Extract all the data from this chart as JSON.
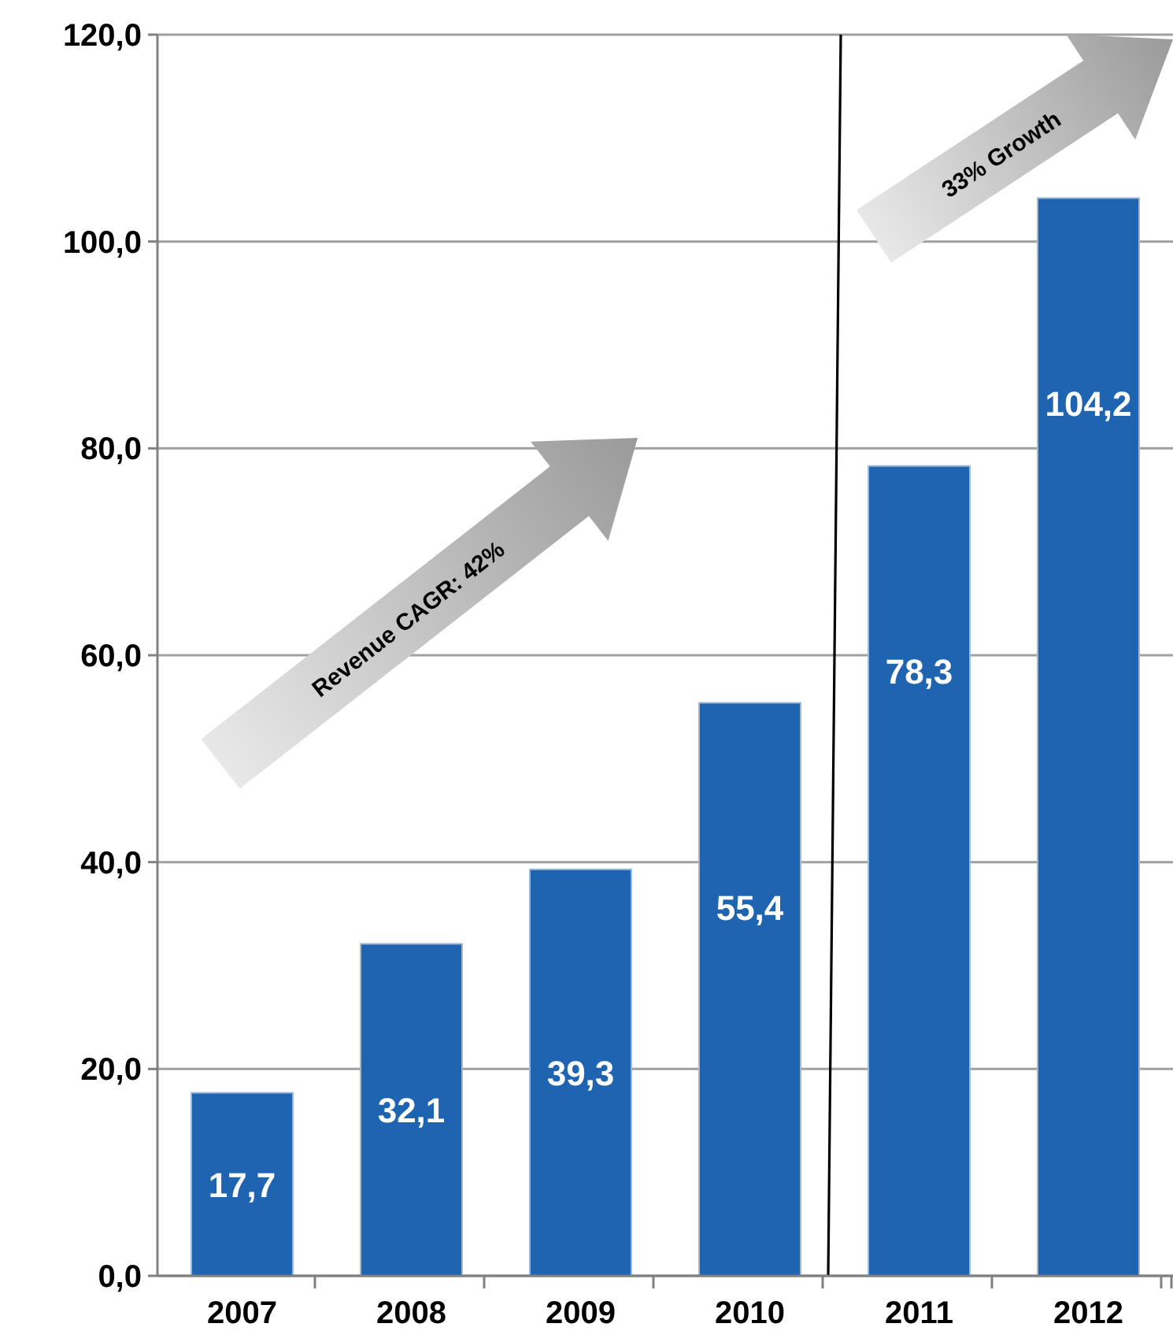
{
  "chart_data": {
    "type": "bar",
    "categories": [
      "2007",
      "2008",
      "2009",
      "2010",
      "2011",
      "2012"
    ],
    "values": [
      17.7,
      32.1,
      39.3,
      55.4,
      78.3,
      104.2
    ],
    "color": "#1f64b0",
    "value_labels": [
      "17,7",
      "32,1",
      "39,3",
      "55,4",
      "78,3",
      "104,2"
    ],
    "ylim": [
      0,
      120
    ],
    "yticks": [
      {
        "value": 0,
        "label": "0,0"
      },
      {
        "value": 20,
        "label": "20,0"
      },
      {
        "value": 40,
        "label": "40,0"
      },
      {
        "value": 60,
        "label": "60,0"
      },
      {
        "value": 80,
        "label": "80,0"
      },
      {
        "value": 100,
        "label": "100,0"
      },
      {
        "value": 120,
        "label": "120,0"
      }
    ],
    "grid": "y",
    "annotations": [
      "Revenue CAGR: 42%",
      "33% Growth"
    ]
  }
}
